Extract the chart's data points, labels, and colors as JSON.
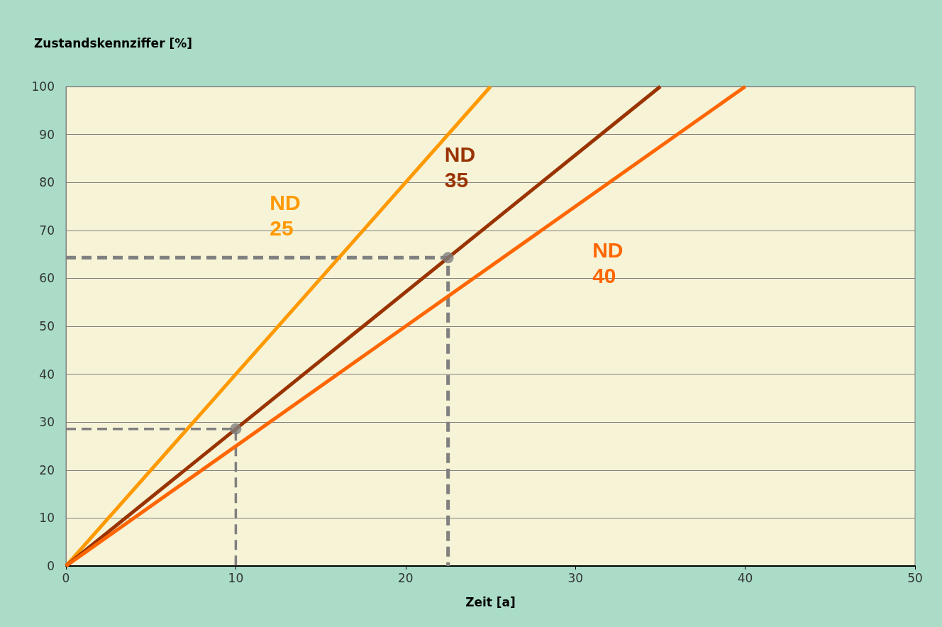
{
  "chart_data": {
    "type": "line",
    "xlabel": "Zeit [a]",
    "ylabel": "Zustandskennziffer [%]",
    "xlim": [
      0,
      50
    ],
    "xticks": [
      0,
      10,
      20,
      30,
      40,
      50
    ],
    "ylim": [
      0,
      100
    ],
    "yticks": [
      0,
      10,
      20,
      30,
      40,
      50,
      60,
      70,
      80,
      90,
      100
    ],
    "grid": "y",
    "legend": false,
    "marker": "none",
    "line_style": "solid",
    "series": [
      {
        "name": "ND 25",
        "color": "#ff9900",
        "x": [
          0,
          25
        ],
        "values": [
          0,
          100
        ]
      },
      {
        "name": "ND 35",
        "color": "#993300",
        "x": [
          0,
          35
        ],
        "values": [
          0,
          100
        ]
      },
      {
        "name": "ND 40",
        "color": "#ff6600",
        "x": [
          0,
          40
        ],
        "values": [
          0,
          100
        ]
      },
      {
        "color": "#808080",
        "line_style": "dashed",
        "x": [
          0,
          10,
          10
        ],
        "values": [
          28.6,
          28.6,
          0
        ]
      },
      {
        "color": "#808080",
        "line_style": "dashed",
        "x": [
          0,
          22.5,
          22.5
        ],
        "values": [
          64.3,
          64.3,
          0
        ]
      },
      {
        "type": "scatter",
        "marker": "circle",
        "color": "#808080",
        "x": [
          10,
          22.5
        ],
        "values": [
          28.6,
          64.3
        ]
      }
    ]
  }
}
